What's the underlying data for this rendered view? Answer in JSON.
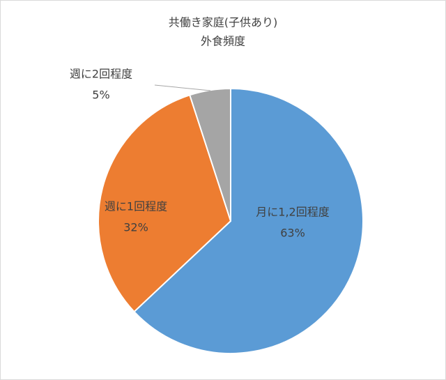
{
  "chart_data": {
    "type": "pie",
    "title": "共働き家庭(子供あり)",
    "subtitle": "外食頻度",
    "categories": [
      "月に1,2回程度",
      "週に1回程度",
      "週に2回程度"
    ],
    "values": [
      63,
      32,
      5
    ],
    "value_labels": [
      "63%",
      "32%",
      "5%"
    ],
    "colors": [
      "#5b9bd5",
      "#ed7d31",
      "#a5a5a5"
    ]
  }
}
